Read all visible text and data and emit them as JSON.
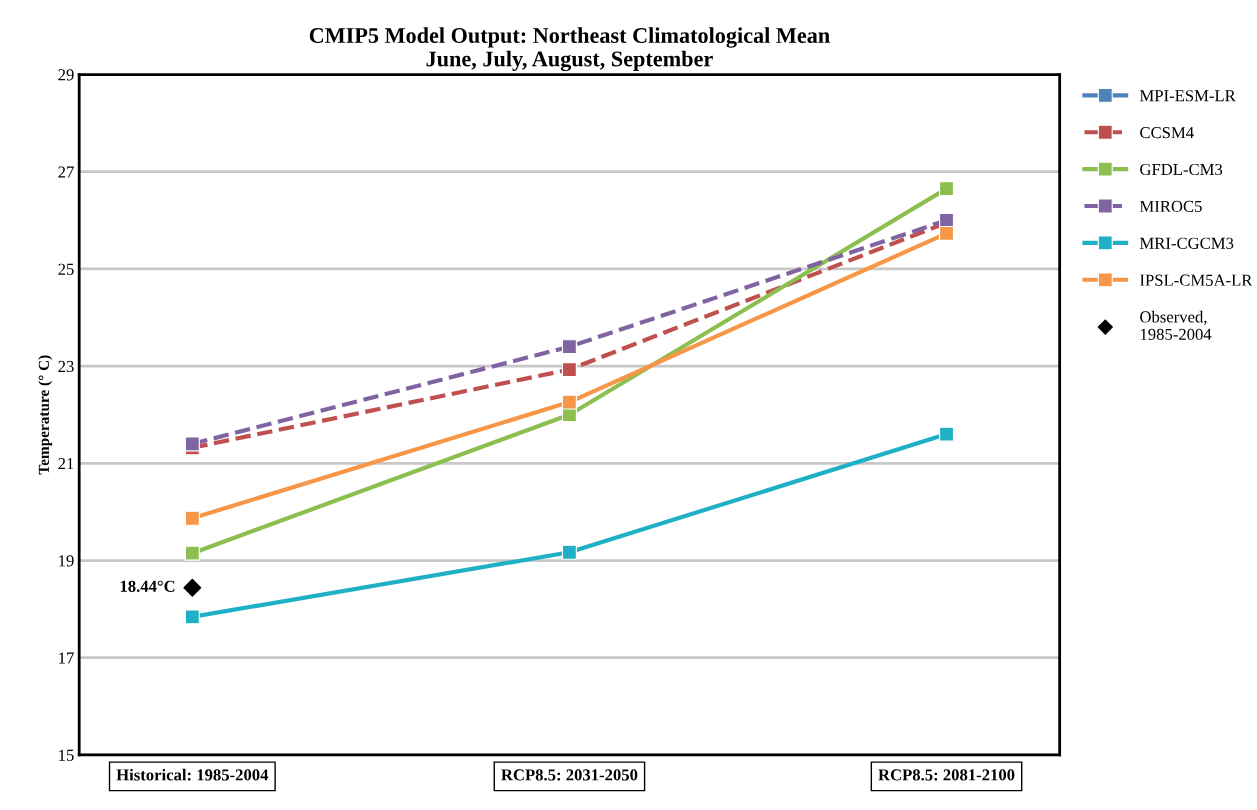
{
  "chart_data": {
    "type": "line",
    "title": "CMIP5 Model Output: Northeast Climatological Mean\nJune, July, August, September",
    "ylabel": "Temperature (° C)",
    "categories": [
      "Historical: 1985-2004",
      "RCP8.5: 2031-2050",
      "RCP8.5: 2081-2100"
    ],
    "series": [
      {
        "name": "MPI-ESM-LR",
        "color": "#4f81bd",
        "values": [
          null,
          null,
          null
        ]
      },
      {
        "name": "CCSM4",
        "color": "#c0504d",
        "values": [
          21.32,
          22.93,
          25.95
        ],
        "line_style": "dashed"
      },
      {
        "name": "GFDL-CM3",
        "color": "#8cbf4f",
        "values": [
          19.15,
          22.0,
          26.65
        ]
      },
      {
        "name": "MIROC5",
        "color": "#8064a2",
        "values": [
          21.4,
          23.4,
          26.0
        ],
        "line_style": "dashed"
      },
      {
        "name": "MRI-CGCM3",
        "color": "#1fb0c6",
        "values": [
          17.84,
          19.17,
          21.6
        ]
      },
      {
        "name": "IPSL-CM5A-LR",
        "color": "#f79646",
        "values": [
          19.87,
          22.26,
          25.73
        ]
      },
      {
        "name": "Observed,\n1985-2004",
        "color": "#000000",
        "type": "scatter",
        "marker": "diamond",
        "values": [
          18.44,
          null,
          null
        ]
      }
    ],
    "annotations": [
      {
        "text": "18.44°C",
        "x": "Historical: 1985-2004",
        "y": 18.44
      }
    ],
    "ylim": [
      15,
      29
    ],
    "yticks": [
      15,
      17,
      19,
      21,
      23,
      25,
      27,
      29
    ],
    "grid": "y",
    "legend": "right",
    "marker": "square",
    "line_style": "solid"
  }
}
